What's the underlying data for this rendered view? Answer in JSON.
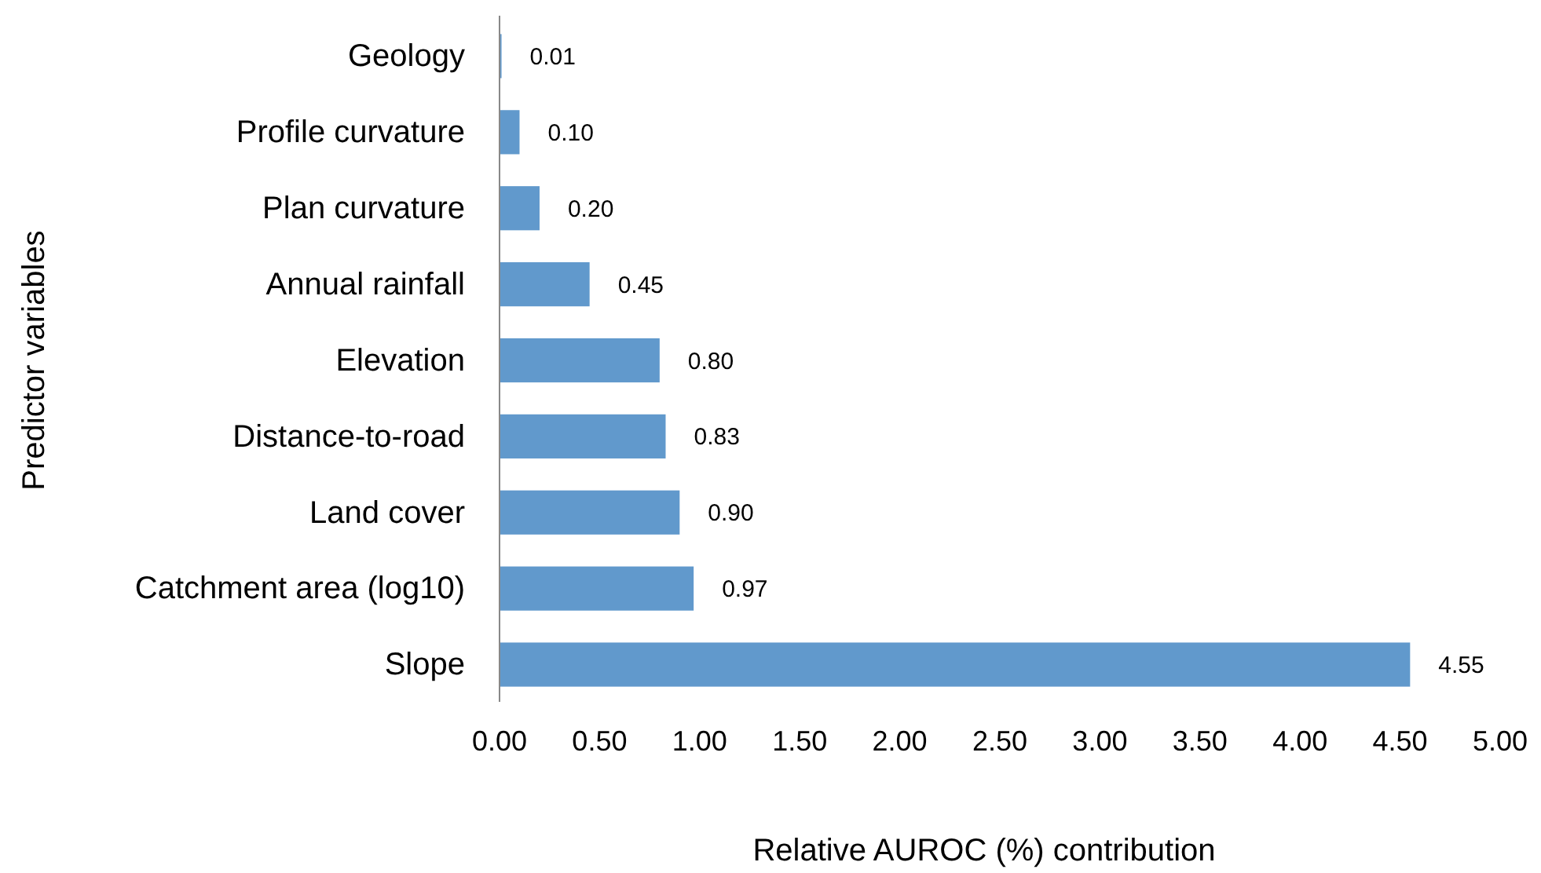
{
  "chart_data": {
    "type": "bar",
    "orientation": "horizontal",
    "xlabel": "Relative AUROC (%) contribution",
    "ylabel": "Predictor variables",
    "categories": [
      "Geology",
      "Profile curvature",
      "Plan curvature",
      "Annual rainfall",
      "Elevation",
      "Distance-to-road",
      "Land cover",
      "Catchment area (log10)",
      "Slope"
    ],
    "values": [
      0.01,
      0.1,
      0.2,
      0.45,
      0.8,
      0.83,
      0.9,
      0.97,
      4.55
    ],
    "color": "#6199cc",
    "data_labels": true,
    "value_labels": [
      "0.01",
      "0.10",
      "0.20",
      "0.45",
      "0.80",
      "0.83",
      "0.90",
      "0.97",
      "4.55"
    ],
    "xlim": [
      0,
      5
    ],
    "xticks": [
      {
        "value": 0,
        "label": "0.00"
      },
      {
        "value": 0.5,
        "label": "0.50"
      },
      {
        "value": 1,
        "label": "1.00"
      },
      {
        "value": 1.5,
        "label": "1.50"
      },
      {
        "value": 2,
        "label": "2.00"
      },
      {
        "value": 2.5,
        "label": "2.50"
      },
      {
        "value": 3,
        "label": "3.00"
      },
      {
        "value": 3.5,
        "label": "3.50"
      },
      {
        "value": 4,
        "label": "4.00"
      },
      {
        "value": 4.5,
        "label": "4.50"
      },
      {
        "value": 5,
        "label": "5.00"
      }
    ],
    "grid": false
  }
}
